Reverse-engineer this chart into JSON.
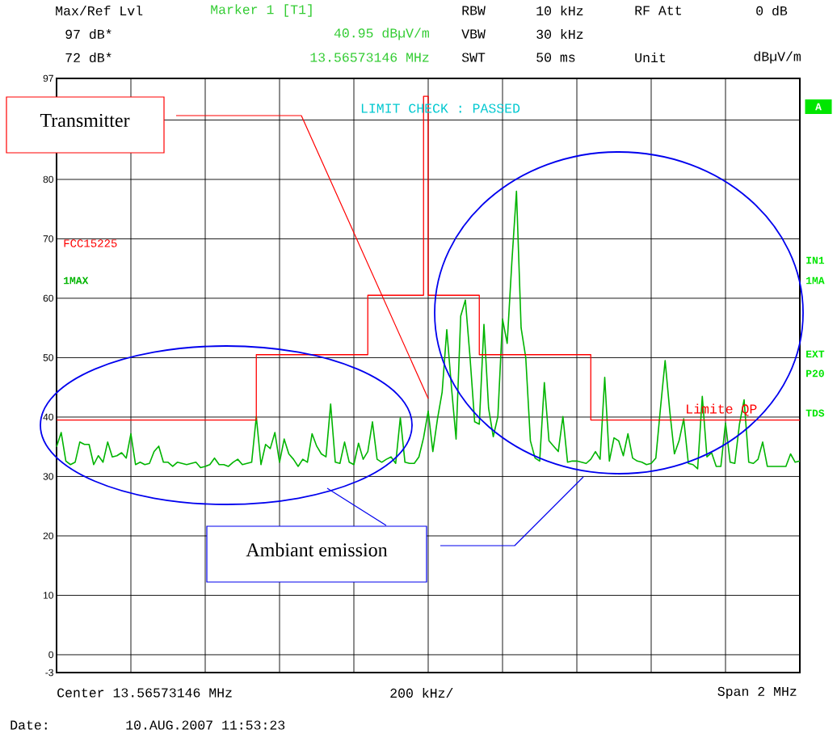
{
  "chart_data": {
    "type": "line",
    "categories": [
      null,
      null,
      null,
      null,
      null,
      null,
      null,
      null,
      null,
      null,
      null,
      null,
      null,
      null,
      null,
      null,
      null,
      null,
      null,
      null,
      null,
      null,
      null,
      null,
      null,
      null,
      null,
      null,
      null,
      null,
      null,
      null,
      null,
      null,
      null,
      null,
      null,
      null,
      null,
      null,
      null,
      null,
      null,
      null,
      null,
      null,
      null,
      null,
      null,
      null,
      null,
      null,
      null,
      null,
      null,
      null,
      null,
      null,
      null,
      null,
      null,
      null,
      null,
      null,
      null,
      null,
      null,
      null,
      null,
      null,
      null,
      null,
      null,
      null,
      null,
      null,
      null,
      null,
      null,
      null,
      null,
      null,
      null,
      null,
      null,
      null,
      null,
      null,
      null,
      null,
      null,
      null,
      null,
      null,
      null,
      null,
      null,
      null,
      null,
      null,
      null,
      null,
      null,
      null,
      null,
      null,
      null,
      null,
      null,
      null,
      null,
      null,
      null,
      null,
      null,
      null,
      null,
      null,
      null,
      null,
      null,
      null,
      null,
      null,
      null,
      null,
      null,
      null,
      null,
      null,
      null,
      null,
      null,
      null,
      null,
      null,
      null,
      null,
      null,
      null,
      null,
      null,
      null,
      null,
      null,
      null,
      null,
      null,
      null,
      null,
      null,
      null,
      null,
      null,
      null,
      null,
      null,
      null,
      null,
      null,
      null
    ],
    "series": [
      {
        "name": "1MAX",
        "color": "#00b400",
        "values": [
          35,
          37.4,
          32.6,
          32,
          32.4,
          35.8,
          35.4,
          35.4,
          32,
          33.5,
          32.4,
          35.8,
          33.3,
          33.5,
          34,
          33.1,
          37.2,
          32,
          32.4,
          32,
          32.2,
          34.2,
          35.1,
          32.4,
          32.4,
          31.7,
          32.4,
          32.2,
          32,
          32.2,
          32.4,
          31.5,
          31.7,
          32,
          33.1,
          32,
          32,
          31.7,
          32.4,
          32.9,
          32,
          32.2,
          32.4,
          40.1,
          32,
          35.4,
          34.7,
          37.4,
          32.4,
          36.3,
          33.8,
          32.9,
          31.7,
          32.9,
          32.4,
          37.2,
          35.1,
          33.8,
          33.3,
          42.2,
          32.4,
          32.2,
          35.8,
          32.4,
          32,
          35.6,
          32.9,
          34.2,
          39.2,
          32.9,
          32.4,
          32.9,
          33.3,
          32.2,
          39.9,
          32.4,
          32.2,
          32.2,
          33.3,
          36.5,
          41,
          34.2,
          39.7,
          44.2,
          54.7,
          45.1,
          36.3,
          57,
          59.7,
          50.1,
          39.2,
          38.8,
          55.6,
          41.5,
          36.7,
          40.1,
          56.5,
          52.4,
          66,
          78,
          55,
          50,
          36,
          33.1,
          32.6,
          45.8,
          36,
          35.1,
          34.2,
          40.1,
          32.4,
          32.6,
          32.6,
          32.4,
          32.2,
          32.9,
          34.2,
          32.9,
          46.7,
          32.6,
          36.5,
          36,
          33.5,
          37.2,
          33.1,
          32.6,
          32.4,
          32,
          32.2,
          33.1,
          41.5,
          49.5,
          41,
          33.8,
          36,
          39.7,
          32.2,
          32,
          31.3,
          43.5,
          33.3,
          34,
          31.7,
          31.7,
          39,
          32.4,
          32.2,
          38.8,
          42.9,
          32.4,
          32.2,
          32.9,
          35.8,
          31.7,
          31.7,
          31.7,
          31.7,
          31.7,
          33.8,
          32.4,
          32.6
        ]
      },
      {
        "name": "FCC15225",
        "type": "step",
        "color": "#ff0000",
        "values": [
          39.5,
          39.5,
          39.5,
          39.5,
          39.5,
          39.5,
          39.5,
          39.5,
          39.5,
          39.5,
          39.5,
          39.5,
          39.5,
          39.5,
          39.5,
          39.5,
          39.5,
          39.5,
          39.5,
          39.5,
          39.5,
          39.5,
          39.5,
          39.5,
          39.5,
          39.5,
          39.5,
          39.5,
          39.5,
          39.5,
          39.5,
          39.5,
          39.5,
          39.5,
          39.5,
          39.5,
          39.5,
          39.5,
          39.5,
          39.5,
          39.5,
          39.5,
          39.5,
          50.5,
          50.5,
          50.5,
          50.5,
          50.5,
          50.5,
          50.5,
          50.5,
          50.5,
          50.5,
          50.5,
          50.5,
          50.5,
          50.5,
          50.5,
          50.5,
          50.5,
          50.5,
          50.5,
          50.5,
          50.5,
          50.5,
          50.5,
          50.5,
          60.5,
          60.5,
          60.5,
          60.5,
          60.5,
          60.5,
          60.5,
          60.5,
          60.5,
          60.5,
          60.5,
          60.5,
          94,
          60.5,
          60.5,
          60.5,
          60.5,
          60.5,
          60.5,
          60.5,
          60.5,
          60.5,
          60.5,
          60.5,
          50.5,
          50.5,
          50.5,
          50.5,
          50.5,
          50.5,
          50.5,
          50.5,
          50.5,
          50.5,
          50.5,
          50.5,
          50.5,
          50.5,
          50.5,
          50.5,
          50.5,
          50.5,
          50.5,
          50.5,
          50.5,
          50.5,
          50.5,
          50.5,
          39.5,
          39.5,
          39.5,
          39.5,
          39.5,
          39.5,
          39.5,
          39.5,
          39.5,
          39.5,
          39.5,
          39.5,
          39.5,
          39.5,
          39.5,
          39.5,
          39.5,
          39.5,
          39.5,
          39.5,
          39.5,
          39.5,
          39.5,
          39.5,
          39.5,
          39.5,
          39.5,
          39.5,
          39.5,
          39.5,
          39.5,
          39.5,
          39.5,
          39.5,
          39.5,
          39.5,
          39.5,
          39.5,
          39.5,
          39.5,
          39.5,
          39.5,
          39.5,
          39.5,
          39.5,
          39.5
        ]
      }
    ],
    "ylim": [
      -3,
      97
    ],
    "yticks": [
      -3,
      0,
      10,
      20,
      30,
      40,
      50,
      60,
      70,
      80,
      {
        "value": 90,
        "label": null
      },
      97
    ],
    "grid": true,
    "tick_labels": "y",
    "annotations": [
      "Max/Ref Lvl",
      "97 dB*",
      "72 dB*",
      "Marker 1 [T1]",
      "40.95 dBµV/m",
      "13.56573146 MHz",
      "RBW",
      "10 kHz",
      "RF Att",
      "0 dB",
      "VBW",
      "30 kHz",
      "SWT",
      "50 ms",
      "Unit",
      "dBµV/m",
      "LIMIT CHECK : PASSED",
      "Limite QP",
      "A",
      "IN1",
      "1MA",
      "EXT",
      "P20",
      "TDS",
      "Transmitter",
      "Ambiant emission",
      "Center 13.56573146 MHz",
      "200 kHz/",
      "Span 2 MHz",
      "Date:",
      "10.AUG.2007 11:53:23"
    ]
  }
}
